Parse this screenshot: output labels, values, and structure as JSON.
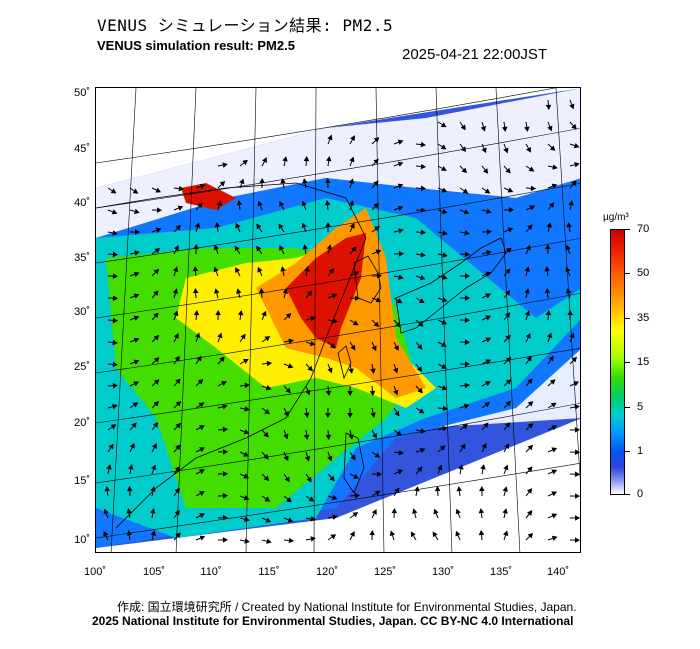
{
  "header": {
    "title_jp": "VENUS シミュレーション結果: PM2.5",
    "title_en": "VENUS simulation result: PM2.5",
    "timestamp": "2025-04-21 22:00JST"
  },
  "map": {
    "lat_labels": [
      "50˚",
      "45˚",
      "40˚",
      "35˚",
      "30˚",
      "25˚",
      "20˚",
      "15˚",
      "10˚"
    ],
    "lon_labels": [
      "100˚",
      "105˚",
      "110˚",
      "115˚",
      "120˚",
      "125˚",
      "130˚",
      "135˚",
      "140˚"
    ],
    "field": "PM2.5 concentration with wind vectors",
    "colors": {
      "very_high": "#dd1100",
      "high": "#ff9900",
      "medium": "#ffee00",
      "mid_low": "#44dd00",
      "low": "#00cccc",
      "very_low": "#1177ff",
      "minimal": "#3355dd",
      "clean": "#eef0ff"
    }
  },
  "colorbar": {
    "unit": "µg/m³",
    "ticks": [
      "70",
      "50",
      "35",
      "15",
      "5",
      "1",
      "0"
    ]
  },
  "footer": {
    "credit_line_1": "作成: 国立環境研究所 / Created by National Institute for Environmental Studies, Japan.",
    "credit_line_2": "2025 National Institute for Environmental Studies, Japan. CC BY-NC 4.0 International"
  }
}
